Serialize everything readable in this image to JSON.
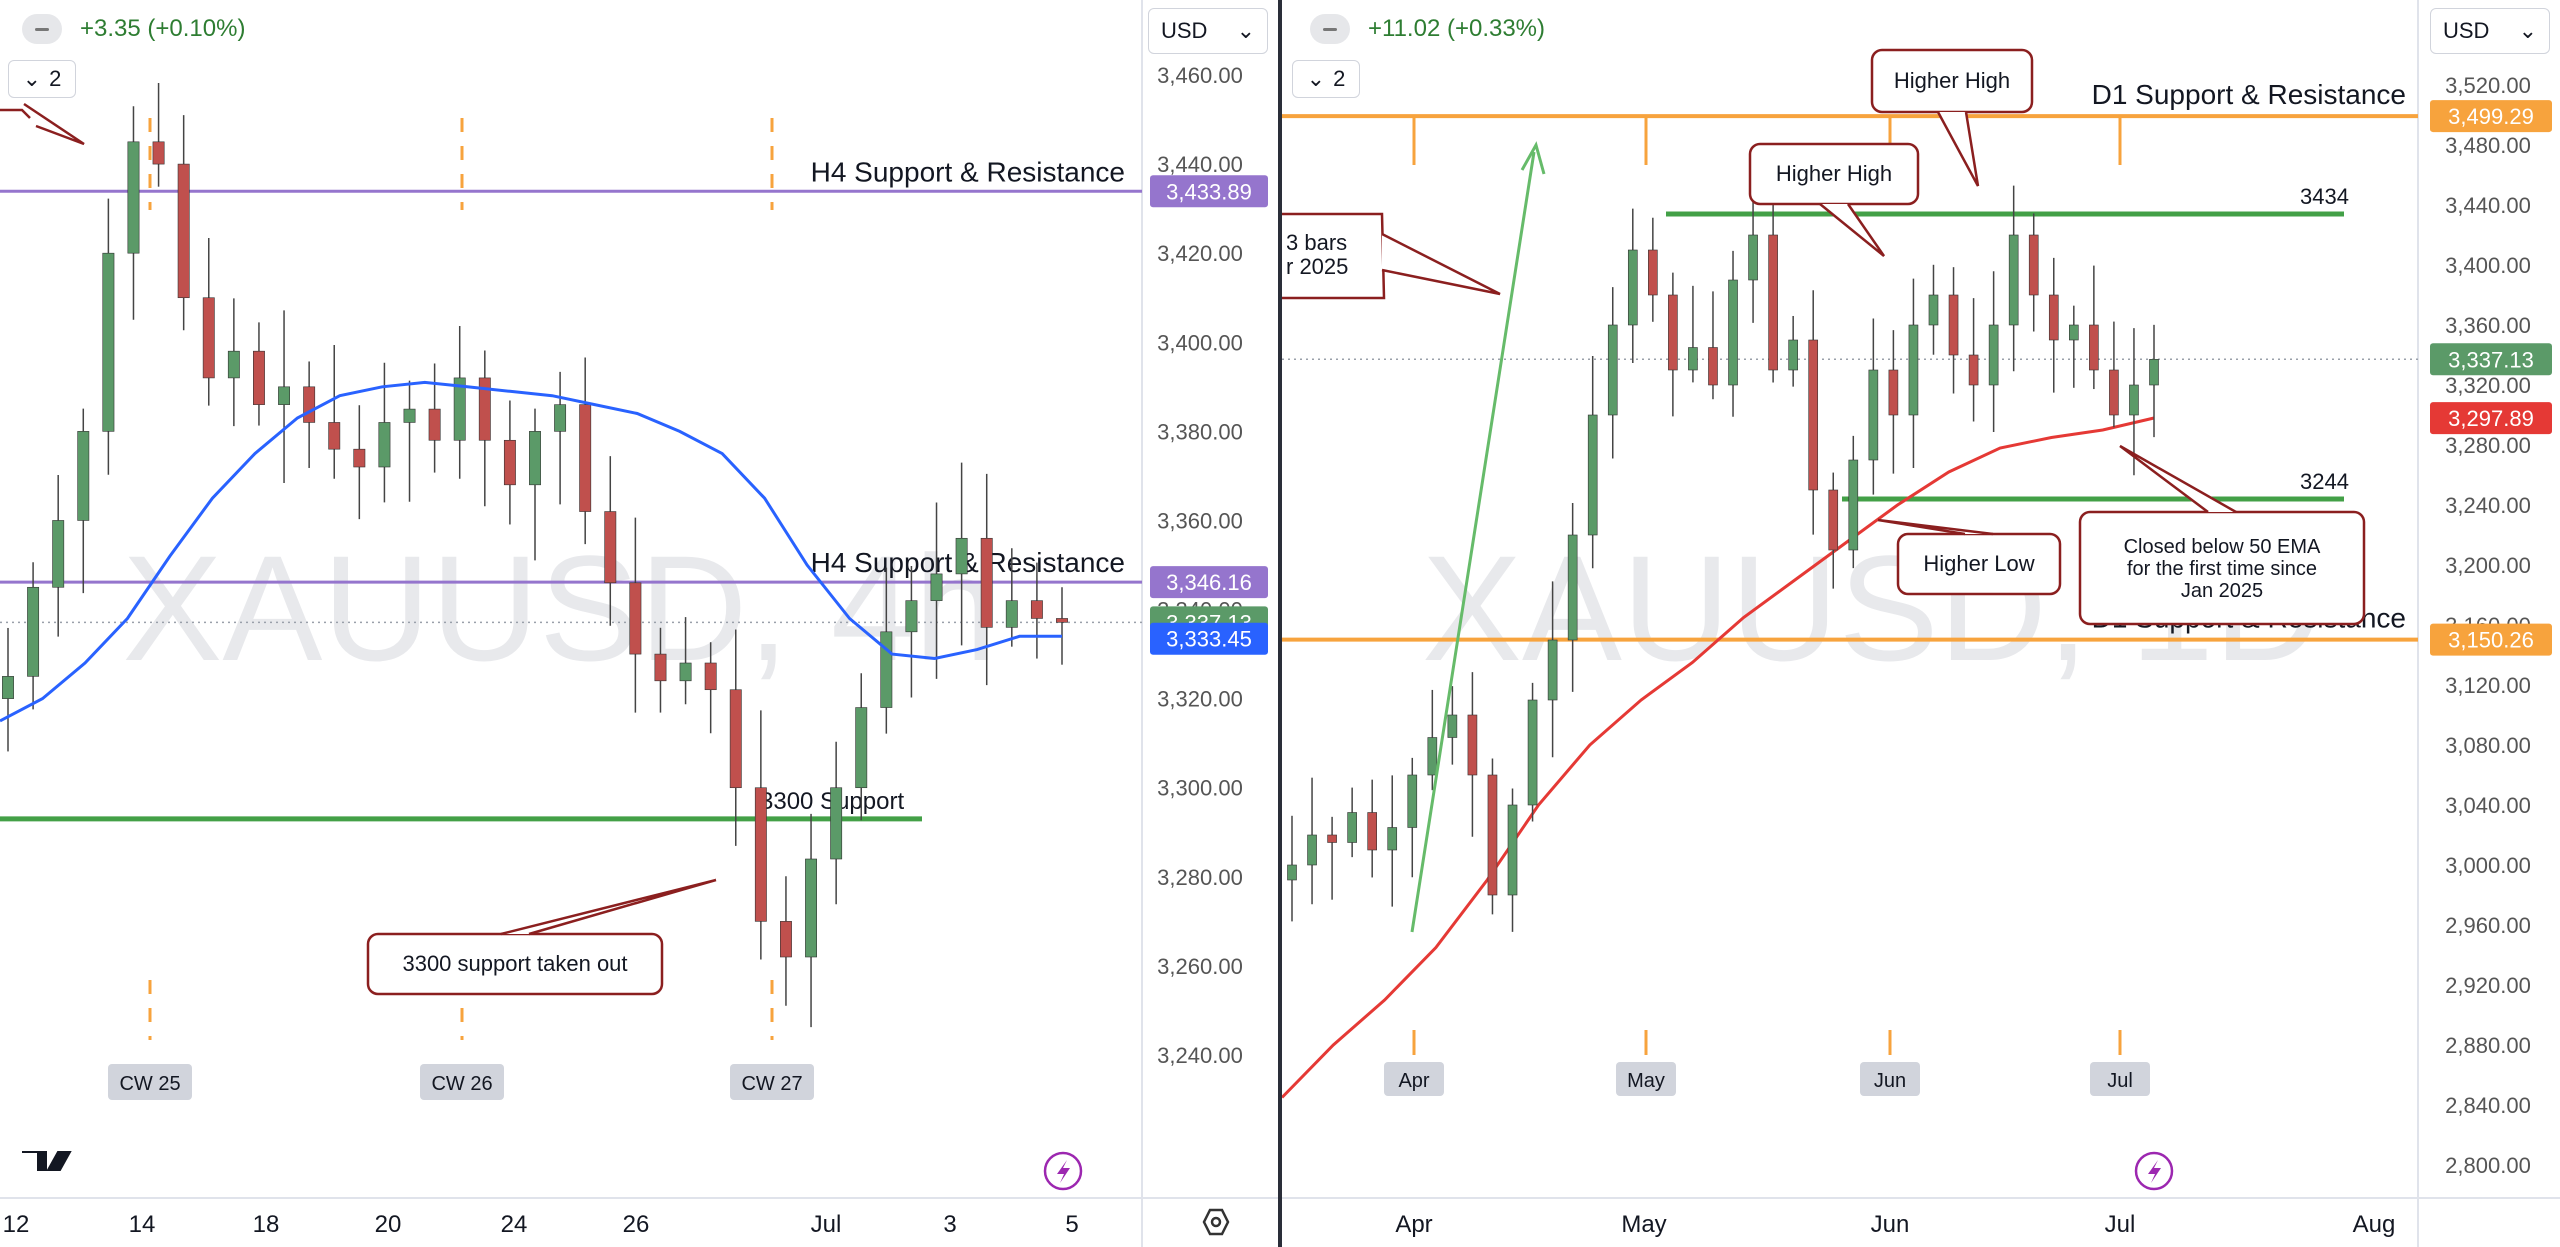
{
  "chart_data": [
    {
      "type": "candlestick",
      "symbol": "XAUUSD",
      "timeframe": "4h",
      "watermark": "XAUUSD, 4h",
      "header": {
        "change": "+3.35 (+0.10%)",
        "level": "2"
      },
      "currency": "USD",
      "ylim": [
        3225,
        3470
      ],
      "yticks": [
        "3,460.00",
        "3,440.00",
        "3,420.00",
        "3,400.00",
        "3,380.00",
        "3,360.00",
        "3,340.00",
        "3,320.00",
        "3,300.00",
        "3,280.00",
        "3,260.00",
        "3,240.00"
      ],
      "ytick_values": [
        3460,
        3440,
        3420,
        3400,
        3380,
        3360,
        3340,
        3320,
        3300,
        3280,
        3260,
        3240
      ],
      "xticks": [
        "12",
        "14",
        "18",
        "20",
        "24",
        "26",
        "Jul",
        "3",
        "5"
      ],
      "week_markers": [
        "CW 25",
        "CW 26",
        "CW 27"
      ],
      "price_labels": [
        {
          "text": "3,433.89",
          "value": 3433.89,
          "color": "#9575cd"
        },
        {
          "text": "3,346.16",
          "value": 3346.16,
          "color": "#9575cd"
        },
        {
          "text": "3,337.13",
          "value": 3337.13,
          "color": "#5b9a68"
        },
        {
          "text": "3,333.45",
          "value": 3333.45,
          "color": "#2962ff"
        }
      ],
      "levels": [
        {
          "label": "H4 Support & Resistance",
          "value": 3433.89,
          "color": "#9575cd"
        },
        {
          "label": "H4 Support & Resistance",
          "value": 3346.16,
          "color": "#9575cd"
        },
        {
          "label": "3300 Support",
          "value": 3293,
          "color": "#43a047"
        }
      ],
      "annotations": [
        "3300 support taken out"
      ],
      "series": [
        {
          "name": "EMA 50",
          "color": "#2962ff",
          "values": [
            3315,
            3320,
            3328,
            3338,
            3352,
            3365,
            3375,
            3383,
            3388,
            3390,
            3391,
            3390,
            3389,
            3388,
            3386,
            3384,
            3380,
            3375,
            3365,
            3350,
            3338,
            3330,
            3329,
            3331,
            3334,
            3334
          ]
        }
      ],
      "candles_close": [
        3325,
        3345,
        3360,
        3380,
        3420,
        3445,
        3440,
        3410,
        3392,
        3398,
        3386,
        3390,
        3382,
        3376,
        3372,
        3382,
        3385,
        3378,
        3392,
        3378,
        3368,
        3380,
        3386,
        3362,
        3346,
        3330,
        3324,
        3328,
        3322,
        3300,
        3270,
        3262,
        3284,
        3300,
        3318,
        3335,
        3342,
        3348,
        3356,
        3336,
        3342,
        3338,
        3337.13
      ]
    },
    {
      "type": "candlestick",
      "symbol": "XAUUSD",
      "timeframe": "1D",
      "watermark": "XAUUSD, 1D",
      "header": {
        "change": "+11.02 (+0.33%)",
        "level": "2"
      },
      "currency": "USD",
      "ylim": [
        2785,
        3540
      ],
      "yticks": [
        "3,520.00",
        "3,480.00",
        "3,440.00",
        "3,400.00",
        "3,360.00",
        "3,320.00",
        "3,280.00",
        "3,240.00",
        "3,200.00",
        "3,160.00",
        "3,120.00",
        "3,080.00",
        "3,040.00",
        "3,000.00",
        "2,960.00",
        "2,920.00",
        "2,880.00",
        "2,840.00",
        "2,800.00"
      ],
      "ytick_values": [
        3520,
        3480,
        3440,
        3400,
        3360,
        3320,
        3280,
        3240,
        3200,
        3160,
        3120,
        3080,
        3040,
        3000,
        2960,
        2920,
        2880,
        2840,
        2800
      ],
      "xticks": [
        "Apr",
        "May",
        "Jun",
        "Jul",
        "Aug"
      ],
      "month_markers": [
        "Apr",
        "May",
        "Jun",
        "Jul"
      ],
      "price_labels": [
        {
          "text": "3,499.29",
          "value": 3499.29,
          "color": "#f7a33d"
        },
        {
          "text": "3,337.13",
          "value": 3337.13,
          "color": "#5b9a68"
        },
        {
          "text": "3,297.89",
          "value": 3297.89,
          "color": "#e53935"
        },
        {
          "text": "3,150.26",
          "value": 3150.26,
          "color": "#f7a33d"
        }
      ],
      "levels": [
        {
          "label": "D1 Support & Resistance",
          "value": 3499.29,
          "color": "#f7a33d"
        },
        {
          "label": "D1 Support & Resistance",
          "value": 3150.26,
          "color": "#f7a33d"
        },
        {
          "label": "3434",
          "value": 3434,
          "color": "#43a047"
        },
        {
          "label": "3244",
          "value": 3244,
          "color": "#43a047"
        }
      ],
      "annotations": [
        "Higher High",
        "Higher High",
        "Higher Low",
        "Closed below 50 EMA for the first time since Jan 2025",
        "3 bars",
        "r 2025"
      ],
      "series": [
        {
          "name": "EMA 50",
          "color": "#e53935",
          "values": [
            2845,
            2880,
            2910,
            2945,
            2990,
            3040,
            3080,
            3110,
            3135,
            3165,
            3190,
            3215,
            3240,
            3262,
            3278,
            3285,
            3290,
            3298
          ]
        }
      ],
      "candles_close": [
        3000,
        3020,
        3015,
        3035,
        3010,
        3025,
        3060,
        3085,
        3100,
        3060,
        2980,
        3040,
        3110,
        3150,
        3220,
        3300,
        3360,
        3410,
        3380,
        3330,
        3345,
        3320,
        3390,
        3420,
        3330,
        3350,
        3250,
        3210,
        3270,
        3330,
        3300,
        3360,
        3380,
        3340,
        3320,
        3360,
        3420,
        3380,
        3350,
        3360,
        3330,
        3300,
        3320,
        3337.13
      ]
    }
  ]
}
